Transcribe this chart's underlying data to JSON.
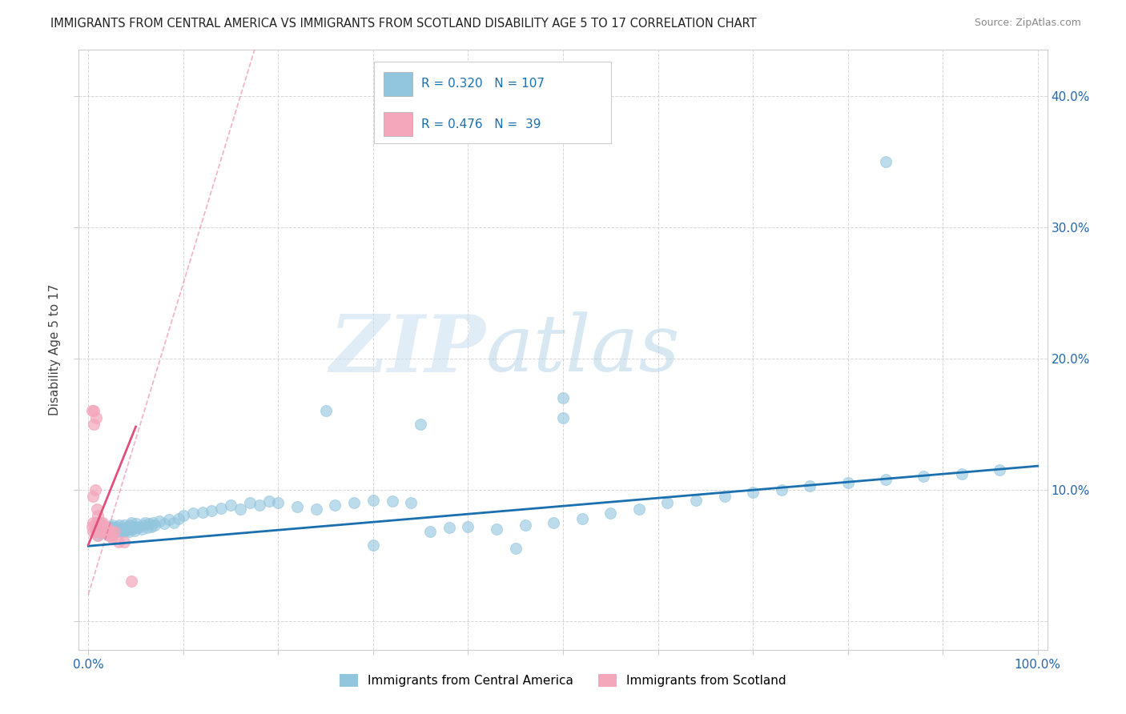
{
  "title": "IMMIGRANTS FROM CENTRAL AMERICA VS IMMIGRANTS FROM SCOTLAND DISABILITY AGE 5 TO 17 CORRELATION CHART",
  "source": "Source: ZipAtlas.com",
  "ylabel": "Disability Age 5 to 17",
  "watermark_zip": "ZIP",
  "watermark_atlas": "atlas",
  "legend_labels": [
    "Immigrants from Central America",
    "Immigrants from Scotland"
  ],
  "blue_color": "#92c5de",
  "pink_color": "#f4a6bb",
  "blue_line_color": "#1a6faf",
  "pink_line_color": "#e0507a",
  "R_blue": 0.32,
  "N_blue": 107,
  "R_pink": 0.476,
  "N_pink": 39,
  "xlim": [
    -0.01,
    1.01
  ],
  "ylim": [
    -0.022,
    0.435
  ],
  "x_ticks": [
    0.0,
    0.1,
    0.2,
    0.3,
    0.4,
    0.5,
    0.6,
    0.7,
    0.8,
    0.9,
    1.0
  ],
  "y_ticks": [
    0.0,
    0.1,
    0.2,
    0.3,
    0.4
  ],
  "blue_scatter_x": [
    0.008,
    0.009,
    0.01,
    0.01,
    0.011,
    0.012,
    0.013,
    0.014,
    0.015,
    0.016,
    0.017,
    0.018,
    0.019,
    0.02,
    0.02,
    0.021,
    0.022,
    0.022,
    0.023,
    0.024,
    0.025,
    0.025,
    0.026,
    0.027,
    0.028,
    0.029,
    0.03,
    0.031,
    0.032,
    0.033,
    0.034,
    0.035,
    0.036,
    0.037,
    0.038,
    0.039,
    0.04,
    0.041,
    0.042,
    0.043,
    0.044,
    0.045,
    0.046,
    0.047,
    0.048,
    0.049,
    0.05,
    0.052,
    0.054,
    0.056,
    0.058,
    0.06,
    0.062,
    0.064,
    0.066,
    0.068,
    0.07,
    0.075,
    0.08,
    0.085,
    0.09,
    0.095,
    0.1,
    0.11,
    0.12,
    0.13,
    0.14,
    0.15,
    0.16,
    0.17,
    0.18,
    0.19,
    0.2,
    0.22,
    0.24,
    0.26,
    0.28,
    0.3,
    0.32,
    0.34,
    0.36,
    0.38,
    0.4,
    0.43,
    0.46,
    0.49,
    0.52,
    0.55,
    0.58,
    0.61,
    0.64,
    0.67,
    0.7,
    0.73,
    0.76,
    0.8,
    0.84,
    0.88,
    0.92,
    0.96,
    0.5,
    0.5,
    0.84,
    0.35,
    0.25,
    0.3,
    0.45
  ],
  "blue_scatter_y": [
    0.068,
    0.072,
    0.065,
    0.07,
    0.068,
    0.071,
    0.069,
    0.067,
    0.073,
    0.07,
    0.068,
    0.069,
    0.071,
    0.066,
    0.07,
    0.069,
    0.068,
    0.071,
    0.07,
    0.072,
    0.068,
    0.073,
    0.069,
    0.071,
    0.068,
    0.07,
    0.072,
    0.069,
    0.068,
    0.073,
    0.07,
    0.069,
    0.071,
    0.068,
    0.073,
    0.069,
    0.071,
    0.07,
    0.072,
    0.068,
    0.073,
    0.075,
    0.07,
    0.072,
    0.071,
    0.069,
    0.074,
    0.071,
    0.072,
    0.07,
    0.073,
    0.075,
    0.071,
    0.074,
    0.072,
    0.075,
    0.073,
    0.076,
    0.074,
    0.077,
    0.075,
    0.078,
    0.08,
    0.082,
    0.083,
    0.084,
    0.086,
    0.088,
    0.085,
    0.09,
    0.088,
    0.091,
    0.09,
    0.087,
    0.085,
    0.088,
    0.09,
    0.092,
    0.091,
    0.09,
    0.068,
    0.071,
    0.072,
    0.07,
    0.073,
    0.075,
    0.078,
    0.082,
    0.085,
    0.09,
    0.092,
    0.095,
    0.098,
    0.1,
    0.103,
    0.105,
    0.108,
    0.11,
    0.112,
    0.115,
    0.17,
    0.155,
    0.35,
    0.15,
    0.16,
    0.058,
    0.055
  ],
  "pink_scatter_x": [
    0.004,
    0.004,
    0.005,
    0.005,
    0.005,
    0.006,
    0.006,
    0.007,
    0.007,
    0.008,
    0.008,
    0.009,
    0.009,
    0.01,
    0.01,
    0.01,
    0.011,
    0.011,
    0.012,
    0.013,
    0.013,
    0.014,
    0.015,
    0.015,
    0.016,
    0.017,
    0.018,
    0.018,
    0.019,
    0.02,
    0.021,
    0.022,
    0.023,
    0.024,
    0.025,
    0.028,
    0.032,
    0.038,
    0.045
  ],
  "pink_scatter_y": [
    0.072,
    0.16,
    0.068,
    0.075,
    0.095,
    0.15,
    0.16,
    0.072,
    0.1,
    0.075,
    0.155,
    0.07,
    0.085,
    0.065,
    0.072,
    0.08,
    0.075,
    0.068,
    0.073,
    0.07,
    0.075,
    0.072,
    0.068,
    0.075,
    0.071,
    0.068,
    0.072,
    0.07,
    0.068,
    0.07,
    0.068,
    0.065,
    0.068,
    0.065,
    0.063,
    0.068,
    0.06,
    0.06,
    0.03
  ],
  "blue_trendline": [
    0.0,
    1.0,
    0.057,
    0.118
  ],
  "pink_trendline_solid": [
    0.0,
    0.05,
    0.058,
    0.148
  ],
  "pink_trendline_dashed": [
    0.0,
    0.175,
    0.02,
    0.435
  ]
}
